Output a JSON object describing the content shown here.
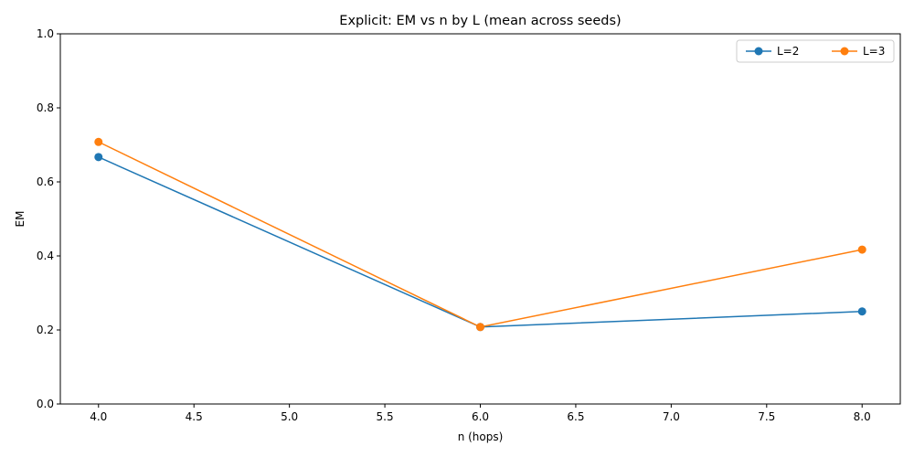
{
  "chart_data": {
    "type": "line",
    "title": "Explicit: EM vs n by L (mean across seeds)",
    "xlabel": "n (hops)",
    "ylabel": "EM",
    "xlim": [
      3.8,
      8.2
    ],
    "ylim": [
      0.0,
      1.0
    ],
    "xticks": [
      "4.0",
      "4.5",
      "5.0",
      "5.5",
      "6.0",
      "6.5",
      "7.0",
      "7.5",
      "8.0"
    ],
    "yticks": [
      "0.0",
      "0.2",
      "0.4",
      "0.6",
      "0.8",
      "1.0"
    ],
    "grid": false,
    "legend_position": "top-right",
    "x": [
      4,
      6,
      8
    ],
    "series": [
      {
        "name": "L=2",
        "color": "#1f77b4",
        "values": [
          0.667,
          0.208,
          0.25
        ]
      },
      {
        "name": "L=3",
        "color": "#ff7f0e",
        "values": [
          0.708,
          0.208,
          0.417
        ]
      }
    ]
  }
}
